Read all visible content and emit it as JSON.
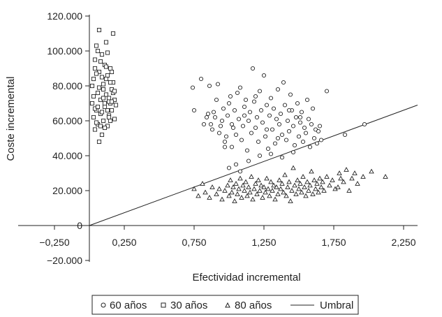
{
  "chart_data": {
    "type": "scatter",
    "xlabel": "Efectividad incremental",
    "ylabel": "Coste incremental",
    "xlim": [
      -0.25,
      2.35
    ],
    "ylim": [
      -20000,
      120000
    ],
    "x_ticks": [
      {
        "value": -0.25,
        "label": "−0,250"
      },
      {
        "value": 0.25,
        "label": "0,250"
      },
      {
        "value": 0.75,
        "label": "0,750"
      },
      {
        "value": 1.25,
        "label": "1,250"
      },
      {
        "value": 1.75,
        "label": "1,750"
      },
      {
        "value": 2.25,
        "label": "2,250"
      }
    ],
    "y_ticks": [
      {
        "value": -20000,
        "label": "−20.000"
      },
      {
        "value": 0,
        "label": "0"
      },
      {
        "value": 20000,
        "label": "20.000"
      },
      {
        "value": 40000,
        "label": "40.000"
      },
      {
        "value": 60000,
        "label": "60.000"
      },
      {
        "value": 80000,
        "label": "80.000"
      },
      {
        "value": 100000,
        "label": "100.000"
      },
      {
        "value": 120000,
        "label": "120.000"
      }
    ],
    "series": [
      {
        "name": "60 años",
        "marker": "circle",
        "points": [
          [
            0.74,
            79000
          ],
          [
            0.75,
            66000
          ],
          [
            0.8,
            84000
          ],
          [
            0.82,
            58000
          ],
          [
            0.84,
            62000
          ],
          [
            0.85,
            64000
          ],
          [
            0.86,
            80000
          ],
          [
            0.87,
            58000
          ],
          [
            0.88,
            55000
          ],
          [
            0.89,
            65000
          ],
          [
            0.9,
            62000
          ],
          [
            0.91,
            72000
          ],
          [
            0.92,
            81000
          ],
          [
            0.93,
            53000
          ],
          [
            0.94,
            57000
          ],
          [
            0.95,
            60000
          ],
          [
            0.96,
            67000
          ],
          [
            0.97,
            48000
          ],
          [
            0.98,
            51000
          ],
          [
            0.99,
            63000
          ],
          [
            1.0,
            70000
          ],
          [
            1.01,
            74000
          ],
          [
            1.02,
            45000
          ],
          [
            1.03,
            56000
          ],
          [
            1.04,
            66000
          ],
          [
            1.05,
            52000
          ],
          [
            1.06,
            76000
          ],
          [
            1.07,
            61000
          ],
          [
            1.08,
            79000
          ],
          [
            1.09,
            49000
          ],
          [
            1.1,
            57000
          ],
          [
            1.11,
            68000
          ],
          [
            1.12,
            72000
          ],
          [
            1.13,
            43000
          ],
          [
            1.14,
            60000
          ],
          [
            1.15,
            65000
          ],
          [
            1.16,
            53000
          ],
          [
            1.17,
            90000
          ],
          [
            1.18,
            71000
          ],
          [
            1.19,
            56000
          ],
          [
            1.2,
            62000
          ],
          [
            1.21,
            48000
          ],
          [
            1.22,
            77000
          ],
          [
            1.23,
            66000
          ],
          [
            1.24,
            59000
          ],
          [
            1.25,
            86000
          ],
          [
            1.26,
            51000
          ],
          [
            1.27,
            69000
          ],
          [
            1.28,
            44000
          ],
          [
            1.29,
            63000
          ],
          [
            1.3,
            73000
          ],
          [
            1.31,
            55000
          ],
          [
            1.32,
            67000
          ],
          [
            1.33,
            47000
          ],
          [
            1.34,
            61000
          ],
          [
            1.35,
            78000
          ],
          [
            1.36,
            58000
          ],
          [
            1.37,
            64000
          ],
          [
            1.38,
            52000
          ],
          [
            1.39,
            82000
          ],
          [
            1.4,
            69000
          ],
          [
            1.41,
            49000
          ],
          [
            1.42,
            60000
          ],
          [
            1.43,
            54000
          ],
          [
            1.44,
            75000
          ],
          [
            1.45,
            66000
          ],
          [
            1.46,
            57000
          ],
          [
            1.47,
            46000
          ],
          [
            1.48,
            62000
          ],
          [
            1.49,
            70000
          ],
          [
            1.5,
            51000
          ],
          [
            1.51,
            59000
          ],
          [
            1.52,
            65000
          ],
          [
            1.53,
            48000
          ],
          [
            1.54,
            56000
          ],
          [
            1.55,
            53000
          ],
          [
            1.56,
            72000
          ],
          [
            1.57,
            61000
          ],
          [
            1.58,
            45000
          ],
          [
            1.59,
            58000
          ],
          [
            1.6,
            67000
          ],
          [
            1.61,
            50000
          ],
          [
            1.62,
            55000
          ],
          [
            1.63,
            47000
          ],
          [
            1.64,
            54000
          ],
          [
            1.65,
            57000
          ],
          [
            1.66,
            49000
          ],
          [
            1.7,
            77000
          ],
          [
            1.83,
            52000
          ],
          [
            1.97,
            58000
          ],
          [
            1.05,
            35000
          ],
          [
            1.08,
            31000
          ],
          [
            1.0,
            33000
          ],
          [
            1.14,
            37000
          ],
          [
            1.22,
            40000
          ],
          [
            1.3,
            41000
          ],
          [
            1.38,
            39000
          ],
          [
            1.46,
            42000
          ],
          [
            0.97,
            45000
          ],
          [
            1.02,
            58000
          ],
          [
            1.11,
            63000
          ],
          [
            1.19,
            74000
          ],
          [
            1.27,
            55000
          ],
          [
            1.35,
            50000
          ],
          [
            1.43,
            66000
          ],
          [
            1.51,
            62000
          ]
        ]
      },
      {
        "name": "30 años",
        "marker": "square",
        "points": [
          [
            0.02,
            70000
          ],
          [
            0.03,
            62000
          ],
          [
            0.03,
            84000
          ],
          [
            0.04,
            55000
          ],
          [
            0.04,
            95000
          ],
          [
            0.05,
            66000
          ],
          [
            0.05,
            103000
          ],
          [
            0.06,
            76000
          ],
          [
            0.06,
            58000
          ],
          [
            0.07,
            88000
          ],
          [
            0.07,
            112000
          ],
          [
            0.08,
            64000
          ],
          [
            0.08,
            72000
          ],
          [
            0.09,
            98000
          ],
          [
            0.09,
            52000
          ],
          [
            0.1,
            81000
          ],
          [
            0.1,
            60000
          ],
          [
            0.11,
            92000
          ],
          [
            0.11,
            68000
          ],
          [
            0.12,
            75000
          ],
          [
            0.12,
            105000
          ],
          [
            0.13,
            57000
          ],
          [
            0.13,
            86000
          ],
          [
            0.14,
            73000
          ],
          [
            0.14,
            63000
          ],
          [
            0.15,
            90000
          ],
          [
            0.15,
            70000
          ],
          [
            0.16,
            78000
          ],
          [
            0.16,
            66000
          ],
          [
            0.17,
            110000
          ],
          [
            0.17,
            82000
          ],
          [
            0.18,
            72000
          ],
          [
            0.18,
            61000
          ],
          [
            0.19,
            69000
          ],
          [
            0.02,
            80000
          ],
          [
            0.03,
            74000
          ],
          [
            0.04,
            67000
          ],
          [
            0.05,
            87000
          ],
          [
            0.06,
            100000
          ],
          [
            0.07,
            48000
          ],
          [
            0.08,
            94000
          ],
          [
            0.09,
            65000
          ],
          [
            0.1,
            78000
          ],
          [
            0.11,
            56000
          ],
          [
            0.12,
            84000
          ],
          [
            0.13,
            99000
          ],
          [
            0.14,
            71000
          ],
          [
            0.15,
            60000
          ],
          [
            0.16,
            88000
          ],
          [
            0.17,
            76000
          ],
          [
            0.05,
            59000
          ],
          [
            0.07,
            79000
          ],
          [
            0.09,
            85000
          ],
          [
            0.11,
            70000
          ],
          [
            0.13,
            66000
          ],
          [
            0.15,
            82000
          ],
          [
            0.04,
            90000
          ],
          [
            0.06,
            68000
          ],
          [
            0.08,
            57000
          ],
          [
            0.1,
            73000
          ],
          [
            0.12,
            91000
          ],
          [
            0.14,
            62000
          ],
          [
            0.16,
            71000
          ],
          [
            0.18,
            77000
          ]
        ]
      },
      {
        "name": "80 años",
        "marker": "triangle",
        "points": [
          [
            0.75,
            21000
          ],
          [
            0.78,
            17000
          ],
          [
            0.81,
            24000
          ],
          [
            0.83,
            19000
          ],
          [
            0.86,
            16000
          ],
          [
            0.88,
            22000
          ],
          [
            0.91,
            18000
          ],
          [
            0.93,
            21000
          ],
          [
            0.95,
            15000
          ],
          [
            0.97,
            20000
          ],
          [
            0.99,
            23000
          ],
          [
            1.0,
            17000
          ],
          [
            1.01,
            26000
          ],
          [
            1.02,
            19000
          ],
          [
            1.03,
            22000
          ],
          [
            1.04,
            14000
          ],
          [
            1.05,
            24000
          ],
          [
            1.06,
            18000
          ],
          [
            1.07,
            21000
          ],
          [
            1.08,
            27000
          ],
          [
            1.09,
            16000
          ],
          [
            1.1,
            23000
          ],
          [
            1.11,
            20000
          ],
          [
            1.12,
            25000
          ],
          [
            1.13,
            17000
          ],
          [
            1.14,
            22000
          ],
          [
            1.15,
            19000
          ],
          [
            1.16,
            28000
          ],
          [
            1.17,
            15000
          ],
          [
            1.18,
            21000
          ],
          [
            1.19,
            24000
          ],
          [
            1.2,
            18000
          ],
          [
            1.21,
            26000
          ],
          [
            1.22,
            20000
          ],
          [
            1.23,
            23000
          ],
          [
            1.24,
            16000
          ],
          [
            1.25,
            22000
          ],
          [
            1.26,
            19000
          ],
          [
            1.27,
            27000
          ],
          [
            1.28,
            21000
          ],
          [
            1.29,
            17000
          ],
          [
            1.3,
            25000
          ],
          [
            1.31,
            20000
          ],
          [
            1.32,
            23000
          ],
          [
            1.33,
            15000
          ],
          [
            1.34,
            22000
          ],
          [
            1.35,
            18000
          ],
          [
            1.36,
            26000
          ],
          [
            1.37,
            21000
          ],
          [
            1.38,
            24000
          ],
          [
            1.39,
            19000
          ],
          [
            1.4,
            29000
          ],
          [
            1.41,
            17000
          ],
          [
            1.42,
            22000
          ],
          [
            1.43,
            25000
          ],
          [
            1.44,
            14000
          ],
          [
            1.45,
            20000
          ],
          [
            1.46,
            33000
          ],
          [
            1.47,
            23000
          ],
          [
            1.48,
            18000
          ],
          [
            1.49,
            26000
          ],
          [
            1.5,
            21000
          ],
          [
            1.51,
            24000
          ],
          [
            1.52,
            19000
          ],
          [
            1.53,
            28000
          ],
          [
            1.54,
            22000
          ],
          [
            1.55,
            17000
          ],
          [
            1.56,
            25000
          ],
          [
            1.57,
            20000
          ],
          [
            1.58,
            23000
          ],
          [
            1.59,
            31000
          ],
          [
            1.6,
            18000
          ],
          [
            1.61,
            26000
          ],
          [
            1.62,
            21000
          ],
          [
            1.63,
            24000
          ],
          [
            1.64,
            19000
          ],
          [
            1.65,
            27000
          ],
          [
            1.66,
            22000
          ],
          [
            1.67,
            25000
          ],
          [
            1.68,
            20000
          ],
          [
            1.7,
            28000
          ],
          [
            1.72,
            23000
          ],
          [
            1.74,
            26000
          ],
          [
            1.76,
            21000
          ],
          [
            1.79,
            30000
          ],
          [
            1.82,
            25000
          ],
          [
            1.84,
            32000
          ],
          [
            1.86,
            20000
          ],
          [
            1.88,
            27000
          ],
          [
            1.9,
            30000
          ],
          [
            1.92,
            24000
          ],
          [
            1.96,
            28000
          ],
          [
            2.02,
            31000
          ],
          [
            2.12,
            28000
          ],
          [
            1.78,
            22000
          ],
          [
            1.8,
            27000
          ]
        ]
      }
    ],
    "threshold": {
      "name": "Umbral",
      "from": [
        0.0,
        0
      ],
      "to": [
        2.35,
        69000
      ]
    },
    "legend": [
      "60 años",
      "30 años",
      "80 años",
      "Umbral"
    ],
    "legend_position": "bottom"
  }
}
